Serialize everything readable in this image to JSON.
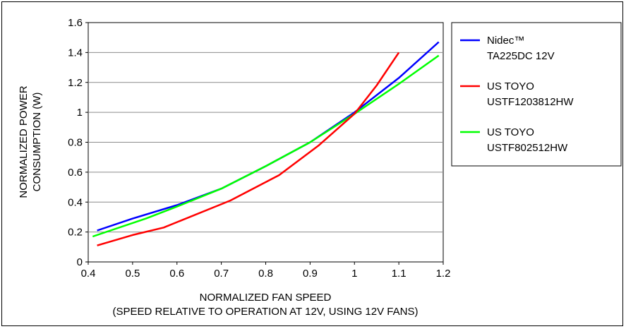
{
  "chart_data": {
    "type": "line",
    "xlabel": "NORMALIZED FAN SPEED",
    "xlabel_sub": "(SPEED RELATIVE TO OPERATION AT 12V, USING 12V FANS)",
    "ylabel_lines": [
      "NORMALIZED POWER",
      "CONSUMPTION (W)"
    ],
    "xlim": [
      0.4,
      1.2
    ],
    "ylim": [
      0,
      1.6
    ],
    "x_ticks": [
      "0.4",
      "0.5",
      "0.6",
      "0.7",
      "0.8",
      "0.9",
      "1",
      "1.1",
      "1.2"
    ],
    "y_ticks": [
      "0",
      "0.2",
      "0.4",
      "0.6",
      "0.8",
      "1",
      "1.2",
      "1.4",
      "1.6"
    ],
    "grid": "horizontal",
    "legend_position": "right",
    "series": [
      {
        "name_lines": [
          "Nidec™",
          "TA225DC 12V"
        ],
        "color": "#0000ff",
        "points": [
          [
            0.42,
            0.21
          ],
          [
            0.5,
            0.29
          ],
          [
            0.6,
            0.38
          ],
          [
            0.7,
            0.49
          ],
          [
            0.8,
            0.64
          ],
          [
            0.9,
            0.8
          ],
          [
            1.0,
            1.0
          ],
          [
            1.1,
            1.23
          ],
          [
            1.19,
            1.47
          ]
        ]
      },
      {
        "name_lines": [
          "US TOYO",
          "USTF1203812HW"
        ],
        "color": "#ff0000",
        "points": [
          [
            0.42,
            0.11
          ],
          [
            0.5,
            0.18
          ],
          [
            0.57,
            0.23
          ],
          [
            0.72,
            0.41
          ],
          [
            0.83,
            0.58
          ],
          [
            0.92,
            0.78
          ],
          [
            1.0,
            0.99
          ],
          [
            1.05,
            1.18
          ],
          [
            1.1,
            1.4
          ]
        ]
      },
      {
        "name_lines": [
          "US TOYO",
          "USTF802512HW"
        ],
        "color": "#00ff00",
        "points": [
          [
            0.41,
            0.17
          ],
          [
            0.53,
            0.29
          ],
          [
            0.6,
            0.37
          ],
          [
            0.7,
            0.49
          ],
          [
            0.8,
            0.64
          ],
          [
            0.9,
            0.8
          ],
          [
            1.0,
            0.99
          ],
          [
            1.1,
            1.19
          ],
          [
            1.19,
            1.38
          ]
        ]
      }
    ]
  }
}
